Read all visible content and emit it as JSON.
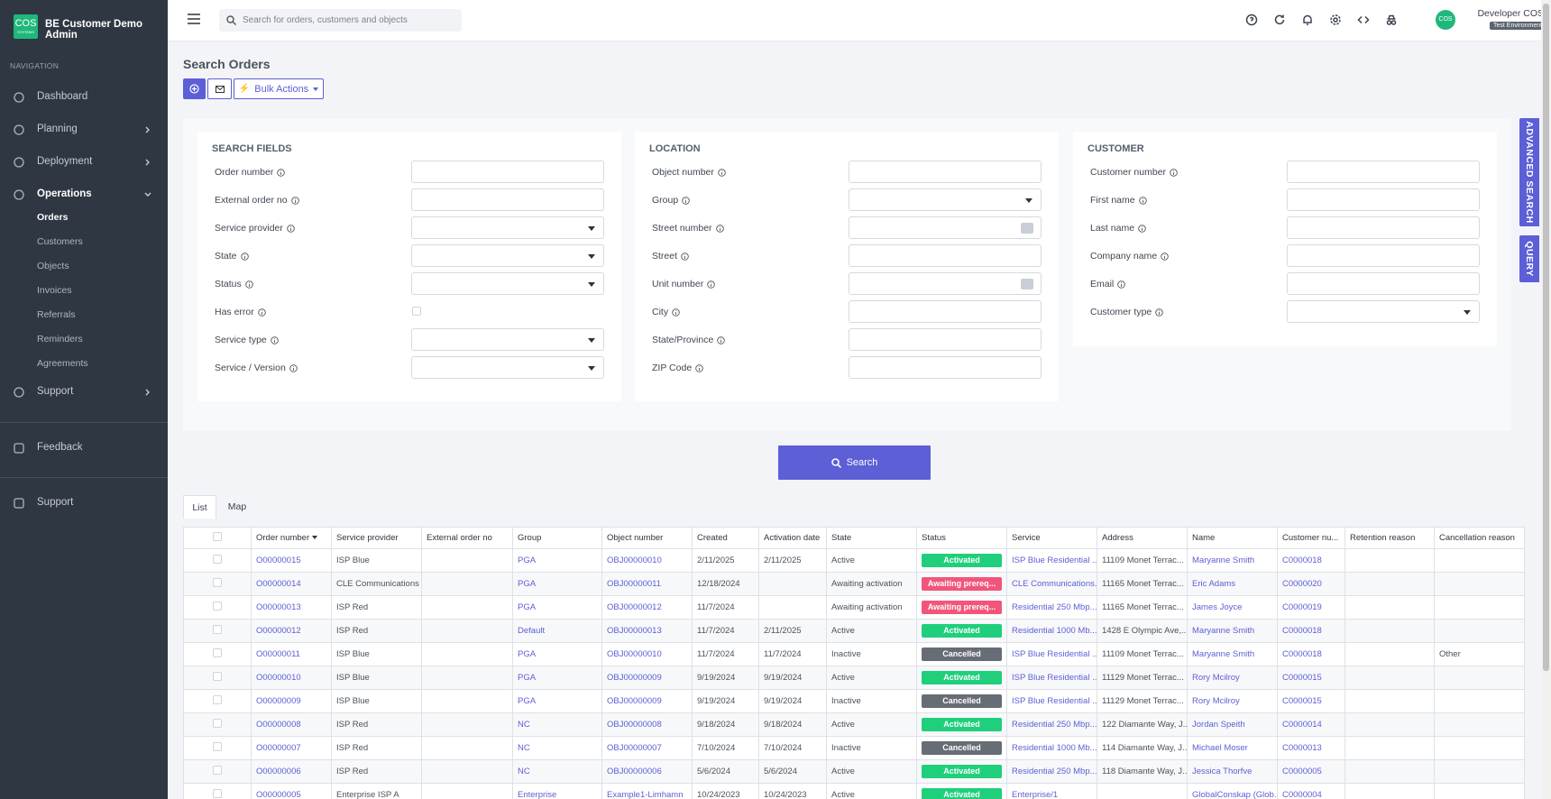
{
  "sidebar": {
    "logo": "COS",
    "logo_sub": "SYSTEMS",
    "app_name": "BE Customer Demo Admin",
    "heading": "NAVIGATION",
    "items": [
      {
        "label": "Dashboard"
      },
      {
        "label": "Planning",
        "expandable": true
      },
      {
        "label": "Deployment",
        "expandable": true
      },
      {
        "label": "Operations",
        "expandable": true,
        "expanded": true,
        "children": [
          "Orders",
          "Customers",
          "Objects",
          "Invoices",
          "Referrals",
          "Reminders",
          "Agreements"
        ],
        "active_child": 0
      },
      {
        "label": "Support",
        "expandable": true
      }
    ],
    "footer": [
      "Feedback",
      "Support"
    ]
  },
  "topbar": {
    "search_placeholder": "Search for orders, customers and objects",
    "avatar": "COS",
    "user_name": "Developer COS",
    "environment": "Test Environment"
  },
  "page": {
    "title": "Search Orders",
    "bulk_actions": "Bulk Actions",
    "side_tabs": [
      "ADVANCED SEARCH",
      "QUERY"
    ],
    "search_button": "Search",
    "tabs": [
      "List",
      "Map"
    ],
    "active_tab": 0
  },
  "panels": [
    {
      "title": "SEARCH FIELDS",
      "fields": [
        {
          "label": "Order number",
          "input": "text"
        },
        {
          "label": "External order no",
          "input": "text"
        },
        {
          "label": "Service provider",
          "input": "select"
        },
        {
          "label": "State",
          "input": "select"
        },
        {
          "label": "Status",
          "input": "select"
        },
        {
          "label": "Has error",
          "input": "checkbox"
        },
        {
          "label": "Service type",
          "input": "select"
        },
        {
          "label": "Service / Version",
          "input": "select"
        }
      ]
    },
    {
      "title": "LOCATION",
      "fields": [
        {
          "label": "Object number",
          "input": "text"
        },
        {
          "label": "Group",
          "input": "select"
        },
        {
          "label": "Street number",
          "input": "picker"
        },
        {
          "label": "Street",
          "input": "text"
        },
        {
          "label": "Unit number",
          "input": "picker"
        },
        {
          "label": "City",
          "input": "text"
        },
        {
          "label": "State/Province",
          "input": "text"
        },
        {
          "label": "ZIP Code",
          "input": "text"
        }
      ]
    },
    {
      "title": "CUSTOMER",
      "fields": [
        {
          "label": "Customer number",
          "input": "text"
        },
        {
          "label": "First name",
          "input": "text"
        },
        {
          "label": "Last name",
          "input": "text"
        },
        {
          "label": "Company name",
          "input": "text"
        },
        {
          "label": "Email",
          "input": "text"
        },
        {
          "label": "Customer type",
          "input": "select"
        }
      ]
    }
  ],
  "table": {
    "columns": [
      "Order number",
      "Service provider",
      "External order no",
      "Group",
      "Object number",
      "Created",
      "Activation date",
      "State",
      "Status",
      "Service",
      "Address",
      "Name",
      "Customer nu...",
      "Retention reason",
      "Cancellation reason"
    ],
    "sort_column": 0,
    "link_columns": [
      0,
      3,
      4,
      9,
      11,
      12
    ],
    "rows": [
      [
        "O00000015",
        "ISP Blue",
        null,
        "PGA",
        "OBJ00000010",
        "2/11/2025",
        "2/11/2025",
        "Active",
        {
          "text": "Activated",
          "color": "#1fcf7c"
        },
        "ISP Blue Residential ...",
        "11109 Monet Terrac...",
        "Maryanne Smith",
        "C0000018",
        null,
        null
      ],
      [
        "O00000014",
        "CLE Communications",
        null,
        "PGA",
        "OBJ00000011",
        "12/18/2024",
        null,
        "Awaiting activation",
        {
          "text": "Awaiting prereq...",
          "color": "#f2557a"
        },
        "CLE Communications...",
        "11165 Monet Terrac...",
        "Eric Adams",
        "C0000020",
        null,
        null
      ],
      [
        "O00000013",
        "ISP Red",
        null,
        "PGA",
        "OBJ00000012",
        "11/7/2024",
        null,
        "Awaiting activation",
        {
          "text": "Awaiting prereq...",
          "color": "#f2557a"
        },
        "Residential 250 Mbp...",
        "11165 Monet Terrac...",
        "James Joyce",
        "C0000019",
        null,
        null
      ],
      [
        "O00000012",
        "ISP Red",
        null,
        "Default",
        "OBJ00000013",
        "11/7/2024",
        "2/11/2025",
        "Active",
        {
          "text": "Activated",
          "color": "#1fcf7c"
        },
        "Residential 1000 Mb...",
        "1428 E Olympic Ave,...",
        "Maryanne Smith",
        "C0000018",
        null,
        null
      ],
      [
        "O00000011",
        "ISP Blue",
        null,
        "PGA",
        "OBJ00000010",
        "11/7/2024",
        "11/7/2024",
        "Inactive",
        {
          "text": "Cancelled",
          "color": "#676d75"
        },
        "ISP Blue Residential ...",
        "11109 Monet Terrac...",
        "Maryanne Smith",
        "C0000018",
        null,
        "Other"
      ],
      [
        "O00000010",
        "ISP Blue",
        null,
        "PGA",
        "OBJ00000009",
        "9/19/2024",
        "9/19/2024",
        "Active",
        {
          "text": "Activated",
          "color": "#1fcf7c"
        },
        "ISP Blue Residential ...",
        "11129 Monet Terrac...",
        "Rory Mcilroy",
        "C0000015",
        null,
        null
      ],
      [
        "O00000009",
        "ISP Blue",
        null,
        "PGA",
        "OBJ00000009",
        "9/19/2024",
        "9/19/2024",
        "Inactive",
        {
          "text": "Cancelled",
          "color": "#676d75"
        },
        "ISP Blue Residential ...",
        "11129 Monet Terrac...",
        "Rory Mcilroy",
        "C0000015",
        null,
        null
      ],
      [
        "O00000008",
        "ISP Red",
        null,
        "NC",
        "OBJ00000008",
        "9/18/2024",
        "9/18/2024",
        "Active",
        {
          "text": "Activated",
          "color": "#1fcf7c"
        },
        "Residential 250 Mbp...",
        "122 Diamante Way, J...",
        "Jordan Speith",
        "C0000014",
        null,
        null
      ],
      [
        "O00000007",
        "ISP Red",
        null,
        "NC",
        "OBJ00000007",
        "7/10/2024",
        "7/10/2024",
        "Inactive",
        {
          "text": "Cancelled",
          "color": "#676d75"
        },
        "Residential 1000 Mb...",
        "114 Diamante Way, J...",
        "Michael Moser",
        "C0000013",
        null,
        null
      ],
      [
        "O00000006",
        "ISP Red",
        null,
        "NC",
        "OBJ00000006",
        "5/6/2024",
        "5/6/2024",
        "Active",
        {
          "text": "Activated",
          "color": "#1fcf7c"
        },
        "Residential 250 Mbp...",
        "118 Diamante Way, J...",
        "Jessica Thorfve",
        "C0000005",
        null,
        null
      ],
      [
        "O00000005",
        "Enterprise ISP A",
        null,
        "Enterprise",
        "Example1-Limhamn",
        "10/24/2023",
        "10/24/2023",
        "Active",
        {
          "text": "Activated",
          "color": "#1fcf7c"
        },
        "Enterprise/1",
        null,
        "GlobalConskap (Glob...",
        "C0000004",
        null,
        null
      ]
    ]
  }
}
